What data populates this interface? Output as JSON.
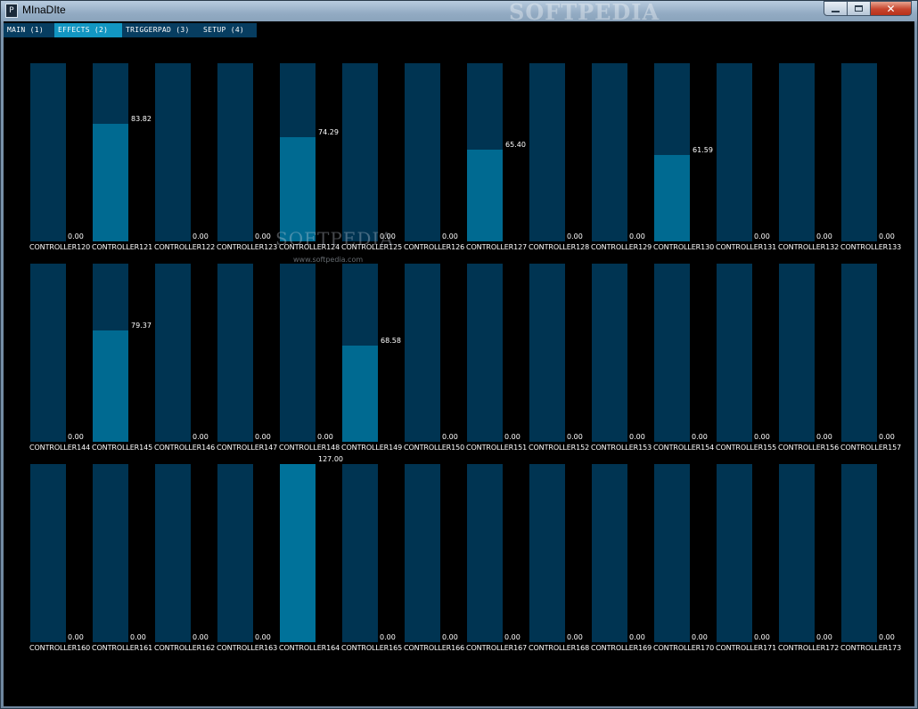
{
  "window": {
    "title": "MInaDIte",
    "app_icon_glyph": "P",
    "watermark": "SOFTPEDIA",
    "buttons": {
      "minimize": "minimize-icon",
      "maximize": "maximize-icon",
      "close": "close-icon",
      "close_glyph": "✕"
    }
  },
  "tabs": [
    {
      "label": "MAIN (1)",
      "active": false
    },
    {
      "label": "EFFECTS (2)",
      "active": true
    },
    {
      "label": "TRIGGERPAD (3)",
      "active": false
    },
    {
      "label": "SETUP (4)",
      "active": false
    }
  ],
  "watermark_mid": {
    "brand": "SOFTPEDIA",
    "url": "www.softpedia.com"
  },
  "max_value": 127,
  "rows": [
    [
      {
        "name": "CONTROLLER120",
        "value": "0.00"
      },
      {
        "name": "CONTROLLER121",
        "value": "83.82"
      },
      {
        "name": "CONTROLLER122",
        "value": "0.00"
      },
      {
        "name": "CONTROLLER123",
        "value": "0.00"
      },
      {
        "name": "CONTROLLER124",
        "value": "74.29"
      },
      {
        "name": "CONTROLLER125",
        "value": "0.00"
      },
      {
        "name": "CONTROLLER126",
        "value": "0.00"
      },
      {
        "name": "CONTROLLER127",
        "value": "65.40"
      },
      {
        "name": "CONTROLLER128",
        "value": "0.00"
      },
      {
        "name": "CONTROLLER129",
        "value": "0.00"
      },
      {
        "name": "CONTROLLER130",
        "value": "61.59"
      },
      {
        "name": "CONTROLLER131",
        "value": "0.00"
      },
      {
        "name": "CONTROLLER132",
        "value": "0.00"
      },
      {
        "name": "CONTROLLER133",
        "value": "0.00"
      }
    ],
    [
      {
        "name": "CONTROLLER144",
        "value": "0.00"
      },
      {
        "name": "CONTROLLER145",
        "value": "79.37"
      },
      {
        "name": "CONTROLLER146",
        "value": "0.00"
      },
      {
        "name": "CONTROLLER147",
        "value": "0.00"
      },
      {
        "name": "CONTROLLER148",
        "value": "0.00"
      },
      {
        "name": "CONTROLLER149",
        "value": "68.58"
      },
      {
        "name": "CONTROLLER150",
        "value": "0.00"
      },
      {
        "name": "CONTROLLER151",
        "value": "0.00"
      },
      {
        "name": "CONTROLLER152",
        "value": "0.00"
      },
      {
        "name": "CONTROLLER153",
        "value": "0.00"
      },
      {
        "name": "CONTROLLER154",
        "value": "0.00"
      },
      {
        "name": "CONTROLLER155",
        "value": "0.00"
      },
      {
        "name": "CONTROLLER156",
        "value": "0.00"
      },
      {
        "name": "CONTROLLER157",
        "value": "0.00"
      }
    ],
    [
      {
        "name": "CONTROLLER160",
        "value": "0.00"
      },
      {
        "name": "CONTROLLER161",
        "value": "0.00"
      },
      {
        "name": "CONTROLLER162",
        "value": "0.00"
      },
      {
        "name": "CONTROLLER163",
        "value": "0.00"
      },
      {
        "name": "CONTROLLER164",
        "value": "127.00"
      },
      {
        "name": "CONTROLLER165",
        "value": "0.00"
      },
      {
        "name": "CONTROLLER166",
        "value": "0.00"
      },
      {
        "name": "CONTROLLER167",
        "value": "0.00"
      },
      {
        "name": "CONTROLLER168",
        "value": "0.00"
      },
      {
        "name": "CONTROLLER169",
        "value": "0.00"
      },
      {
        "name": "CONTROLLER170",
        "value": "0.00"
      },
      {
        "name": "CONTROLLER171",
        "value": "0.00"
      },
      {
        "name": "CONTROLLER172",
        "value": "0.00"
      },
      {
        "name": "CONTROLLER173",
        "value": "0.00"
      }
    ]
  ],
  "colors": {
    "background": "#000000",
    "bar_track": "#003452",
    "bar_fill": "#006a91",
    "tab": "#073d60",
    "tab_active": "#1296c2",
    "text": "#ffffff"
  }
}
